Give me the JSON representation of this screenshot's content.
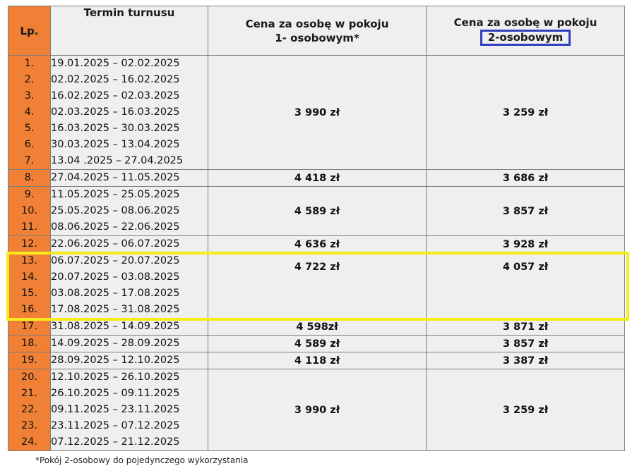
{
  "header": {
    "lp": "Lp.",
    "term": "Termin turnusu",
    "price1_line1": "Cena za osobę w pokoju",
    "price1_line2": "1- osobowym*",
    "price2_line1": "Cena za osobę w pokoju",
    "price2_line2": "2-osobowym"
  },
  "groups": [
    {
      "price1": "3 990 zł",
      "price2": "3 259 zł",
      "rows": [
        {
          "lp": "1.",
          "term": "19.01.2025 – 02.02.2025"
        },
        {
          "lp": "2.",
          "term": "02.02.2025 – 16.02.2025"
        },
        {
          "lp": "3.",
          "term": "16.02.2025 – 02.03.2025"
        },
        {
          "lp": "4.",
          "term": "02.03.2025 – 16.03.2025"
        },
        {
          "lp": "5.",
          "term": "16.03.2025 – 30.03.2025"
        },
        {
          "lp": "6.",
          "term": "30.03.2025 – 13.04.2025"
        },
        {
          "lp": "7.",
          "term": "13.04 .2025 – 27.04.2025"
        }
      ]
    },
    {
      "price1": "4 418 zł",
      "price2": "3 686 zł",
      "rows": [
        {
          "lp": "8.",
          "term": "27.04.2025 – 11.05.2025"
        }
      ]
    },
    {
      "price1": "4 589 zł",
      "price2": "3 857 zł",
      "rows": [
        {
          "lp": "9.",
          "term": "11.05.2025 – 25.05.2025"
        },
        {
          "lp": "10.",
          "term": "25.05.2025 – 08.06.2025"
        },
        {
          "lp": "11.",
          "term": "08.06.2025 – 22.06.2025"
        }
      ]
    },
    {
      "price1": "4 636 zł",
      "price2": "3 928 zł",
      "rows": [
        {
          "lp": "12.",
          "term": "22.06.2025 – 06.07.2025"
        }
      ]
    },
    {
      "price1": "4 722 zł",
      "price2": "4 057 zł",
      "rows": [
        {
          "lp": "13.",
          "term": "06.07.2025 – 20.07.2025"
        },
        {
          "lp": "14.",
          "term": "20.07.2025 – 03.08.2025"
        },
        {
          "lp": "15.",
          "term": "03.08.2025 – 17.08.2025"
        },
        {
          "lp": "16.",
          "term": "17.08.2025 – 31.08.2025"
        }
      ]
    },
    {
      "price1": "4 598zł",
      "price2": "3 871 zł",
      "rows": [
        {
          "lp": "17.",
          "term": "31.08.2025 – 14.09.2025"
        }
      ]
    },
    {
      "price1": "4 589 zł",
      "price2": "3 857 zł",
      "rows": [
        {
          "lp": "18.",
          "term": "14.09.2025 – 28.09.2025"
        }
      ]
    },
    {
      "price1": "4 118 zł",
      "price2": "3 387 zł",
      "rows": [
        {
          "lp": "19.",
          "term": "28.09.2025 – 12.10.2025"
        }
      ]
    },
    {
      "price1": "3 990 zł",
      "price2": "3 259 zł",
      "rows": [
        {
          "lp": "20.",
          "term": "12.10.2025 – 26.10.2025"
        },
        {
          "lp": "21.",
          "term": "26.10.2025 – 09.11.2025"
        },
        {
          "lp": "22.",
          "term": "09.11.2025 – 23.11.2025"
        },
        {
          "lp": "23.",
          "term": "23.11.2025 – 07.12.2025"
        },
        {
          "lp": "24.",
          "term": "07.12.2025 – 21.12.2025"
        }
      ]
    }
  ],
  "footnote": "*Pokój 2-osobowy do pojedynczego wykorzystania",
  "colors": {
    "lp_column": "#ef8035",
    "cell_background": "#efefef",
    "highlight_yellow": "#f7ec1b",
    "highlight_blue": "#2f3fbf"
  }
}
